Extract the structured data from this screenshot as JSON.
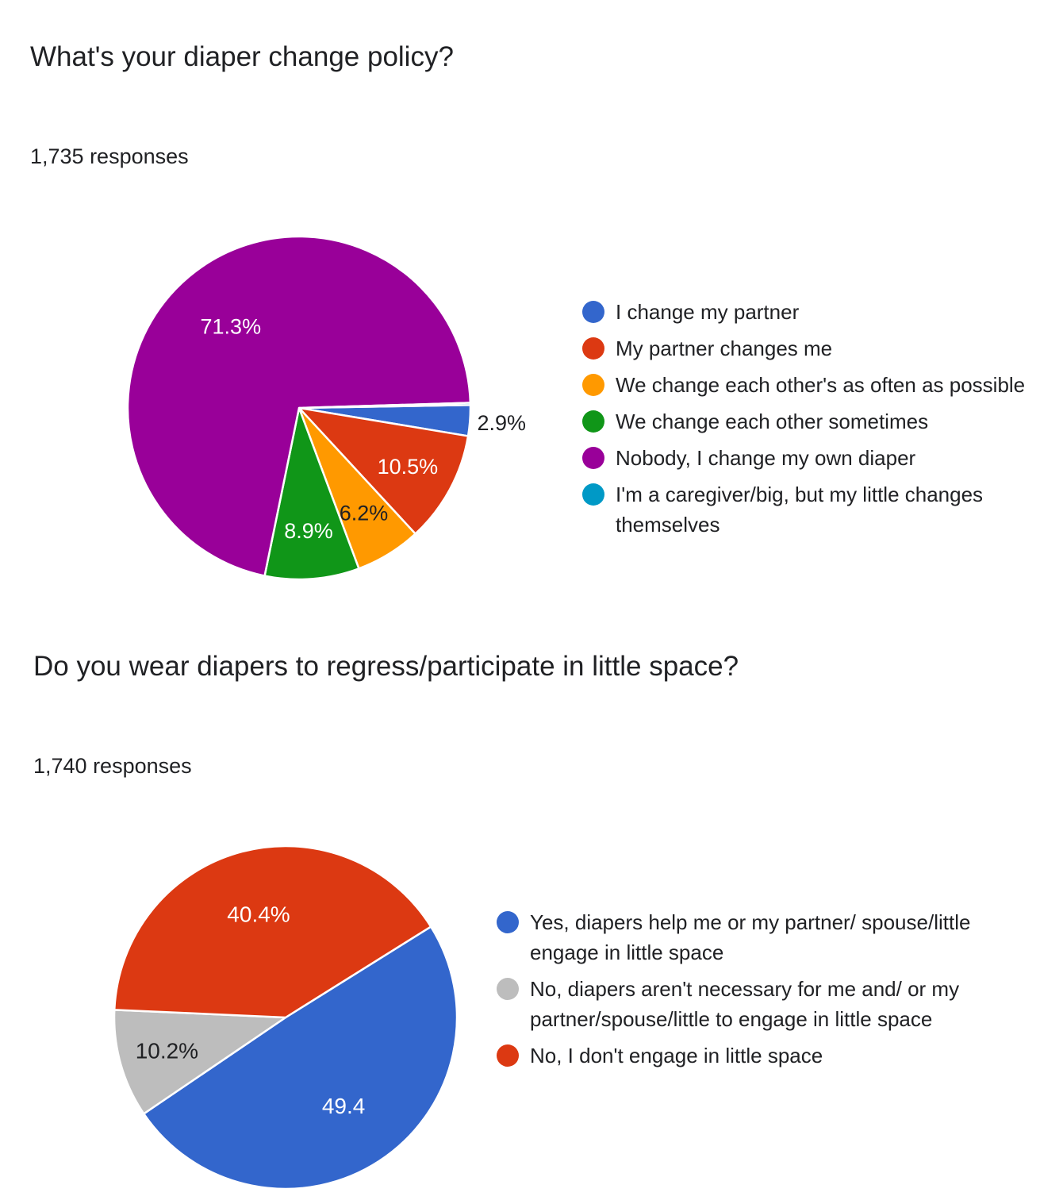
{
  "chart_data": [
    {
      "type": "pie",
      "title": "What's your diaper change policy?",
      "subtitle": "1,735 responses",
      "legend_position": "right",
      "slices": [
        {
          "label": "I change my partner",
          "value": 2.9,
          "display": "2.9%",
          "color": "#3366cc",
          "label_color": "#202124"
        },
        {
          "label": "My partner changes me",
          "value": 10.5,
          "display": "10.5%",
          "color": "#dc3912",
          "label_color": "#ffffff"
        },
        {
          "label": "We change each other's as often as possible",
          "value": 6.2,
          "display": "6.2%",
          "color": "#ff9900",
          "label_color": "#202124"
        },
        {
          "label": "We change each other sometimes",
          "value": 8.9,
          "display": "8.9%",
          "color": "#109618",
          "label_color": "#ffffff"
        },
        {
          "label": "Nobody, I change my own diaper",
          "value": 71.3,
          "display": "71.3%",
          "color": "#990099",
          "label_color": "#ffffff"
        },
        {
          "label": "I'm a caregiver/big, but my little changes themselves",
          "value": 0.2,
          "display": "",
          "color": "#0099c6",
          "label_color": "#ffffff"
        }
      ]
    },
    {
      "type": "pie",
      "title": "Do you wear diapers to regress/participate in little space?",
      "subtitle": "1,740 responses",
      "legend_position": "right",
      "slices": [
        {
          "label": "Yes, diapers help me or my partner/ spouse/little engage in little space",
          "value": 49.4,
          "display": "49.4",
          "color": "#3366cc",
          "label_color": "#ffffff"
        },
        {
          "label": "No, diapers aren't necessary for me and/ or my partner/spouse/little to engage in little space",
          "value": 10.2,
          "display": "10.2%",
          "color": "#bdbdbd",
          "label_color": "#202124"
        },
        {
          "label": "No, I don't engage in little space",
          "value": 40.4,
          "display": "40.4%",
          "color": "#dc3912",
          "label_color": "#ffffff"
        }
      ]
    }
  ]
}
